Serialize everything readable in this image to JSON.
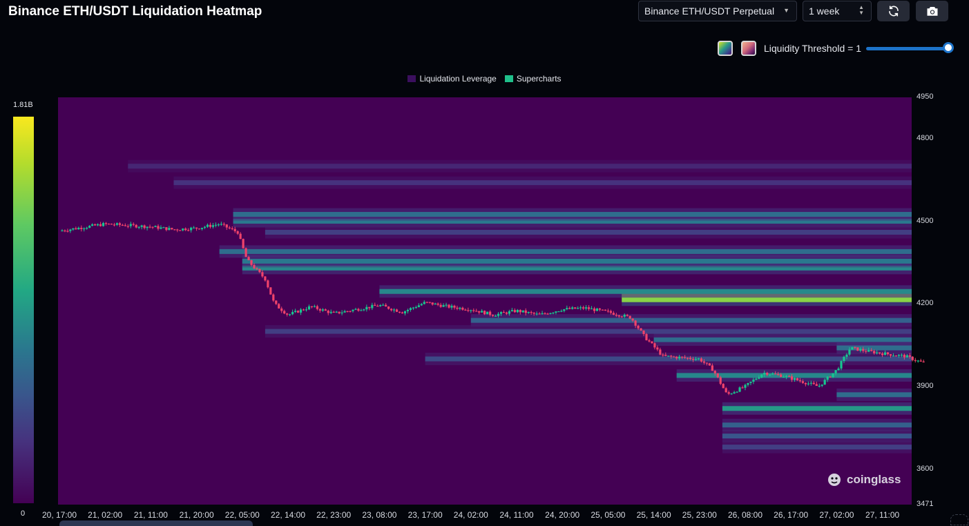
{
  "header": {
    "title": "Binance ETH/USDT Liquidation Heatmap",
    "market_select": "Binance ETH/USDT Perpetual",
    "range_select": "1 week",
    "threshold_label": "Liquidity Threshold = 1"
  },
  "colors": {
    "background": "#03050b",
    "heat_base": "#440154",
    "candle_up": "#17c690",
    "candle_down": "#f0436b",
    "slider": "#1d73c9"
  },
  "icons": {
    "refresh": "refresh-icon",
    "camera": "camera-icon",
    "watermark": "coinglass-logo"
  },
  "watermark": "coinglass",
  "chart_data": {
    "type": "heatmap",
    "legend": [
      "Liquidation Leverage",
      "Supercharts"
    ],
    "legend_colors": [
      "#3b0f5e",
      "#1fbf8a"
    ],
    "legend_placement": "top-center",
    "colorbar": {
      "max_label": "1.81B",
      "min_label": "0"
    },
    "y_ticks": [
      4950,
      4800,
      4500,
      4200,
      3900,
      3600,
      3471
    ],
    "ylim": [
      3471,
      4950
    ],
    "x_ticks": [
      "20, 17:00",
      "21, 02:00",
      "21, 11:00",
      "21, 20:00",
      "22, 05:00",
      "22, 14:00",
      "22, 23:00",
      "23, 08:00",
      "23, 17:00",
      "24, 02:00",
      "24, 11:00",
      "24, 20:00",
      "25, 05:00",
      "25, 14:00",
      "25, 23:00",
      "26, 08:00",
      "26, 17:00",
      "27, 02:00",
      "27, 11:00"
    ],
    "price_path": [
      {
        "t": 0.0,
        "p": 4465
      },
      {
        "t": 0.6,
        "p": 4480
      },
      {
        "t": 1.0,
        "p": 4490
      },
      {
        "t": 1.5,
        "p": 4485
      },
      {
        "t": 2.0,
        "p": 4480
      },
      {
        "t": 2.5,
        "p": 4470
      },
      {
        "t": 3.0,
        "p": 4475
      },
      {
        "t": 3.5,
        "p": 4490
      },
      {
        "t": 3.9,
        "p": 4460
      },
      {
        "t": 4.1,
        "p": 4360
      },
      {
        "t": 4.5,
        "p": 4290
      },
      {
        "t": 4.7,
        "p": 4200
      },
      {
        "t": 5.0,
        "p": 4160
      },
      {
        "t": 5.5,
        "p": 4190
      },
      {
        "t": 6.0,
        "p": 4165
      },
      {
        "t": 6.5,
        "p": 4180
      },
      {
        "t": 7.0,
        "p": 4195
      },
      {
        "t": 7.5,
        "p": 4170
      },
      {
        "t": 8.0,
        "p": 4205
      },
      {
        "t": 8.5,
        "p": 4190
      },
      {
        "t": 9.0,
        "p": 4180
      },
      {
        "t": 9.5,
        "p": 4160
      },
      {
        "t": 10.0,
        "p": 4175
      },
      {
        "t": 10.5,
        "p": 4160
      },
      {
        "t": 11.0,
        "p": 4180
      },
      {
        "t": 11.5,
        "p": 4185
      },
      {
        "t": 12.0,
        "p": 4170
      },
      {
        "t": 12.5,
        "p": 4150
      },
      {
        "t": 12.8,
        "p": 4080
      },
      {
        "t": 13.2,
        "p": 4010
      },
      {
        "t": 13.6,
        "p": 4005
      },
      {
        "t": 14.0,
        "p": 4000
      },
      {
        "t": 14.3,
        "p": 3960
      },
      {
        "t": 14.6,
        "p": 3870
      },
      {
        "t": 15.0,
        "p": 3900
      },
      {
        "t": 15.4,
        "p": 3950
      },
      {
        "t": 15.8,
        "p": 3940
      },
      {
        "t": 16.2,
        "p": 3920
      },
      {
        "t": 16.6,
        "p": 3900
      },
      {
        "t": 17.0,
        "p": 3960
      },
      {
        "t": 17.3,
        "p": 4040
      },
      {
        "t": 17.6,
        "p": 4030
      },
      {
        "t": 18.0,
        "p": 4020
      },
      {
        "t": 18.5,
        "p": 4010
      },
      {
        "t": 18.9,
        "p": 3985
      }
    ],
    "liquidity_bands": [
      {
        "price": 4230,
        "intensity": 1.0,
        "from": 12.3
      },
      {
        "price": 4215,
        "intensity": 0.85,
        "from": 12.3
      },
      {
        "price": 4245,
        "intensity": 0.55,
        "from": 7.0
      },
      {
        "price": 4330,
        "intensity": 0.55,
        "from": 4.0
      },
      {
        "price": 4355,
        "intensity": 0.5,
        "from": 4.0
      },
      {
        "price": 4390,
        "intensity": 0.45,
        "from": 3.5
      },
      {
        "price": 4500,
        "intensity": 0.5,
        "from": 3.8
      },
      {
        "price": 4525,
        "intensity": 0.45,
        "from": 3.8
      },
      {
        "price": 4460,
        "intensity": 0.25,
        "from": 4.5
      },
      {
        "price": 4640,
        "intensity": 0.2,
        "from": 2.5
      },
      {
        "price": 4700,
        "intensity": 0.15,
        "from": 1.5
      },
      {
        "price": 4140,
        "intensity": 0.4,
        "from": 9.0
      },
      {
        "price": 4070,
        "intensity": 0.45,
        "from": 13.0
      },
      {
        "price": 4040,
        "intensity": 0.45,
        "from": 17.0
      },
      {
        "price": 3940,
        "intensity": 0.55,
        "from": 13.5
      },
      {
        "price": 3870,
        "intensity": 0.45,
        "from": 17.0
      },
      {
        "price": 3820,
        "intensity": 0.6,
        "from": 14.5
      },
      {
        "price": 3760,
        "intensity": 0.4,
        "from": 14.5
      },
      {
        "price": 3720,
        "intensity": 0.35,
        "from": 14.5
      },
      {
        "price": 3680,
        "intensity": 0.25,
        "from": 14.5
      },
      {
        "price": 4000,
        "intensity": 0.3,
        "from": 8.0
      },
      {
        "price": 4100,
        "intensity": 0.25,
        "from": 4.5
      }
    ]
  }
}
